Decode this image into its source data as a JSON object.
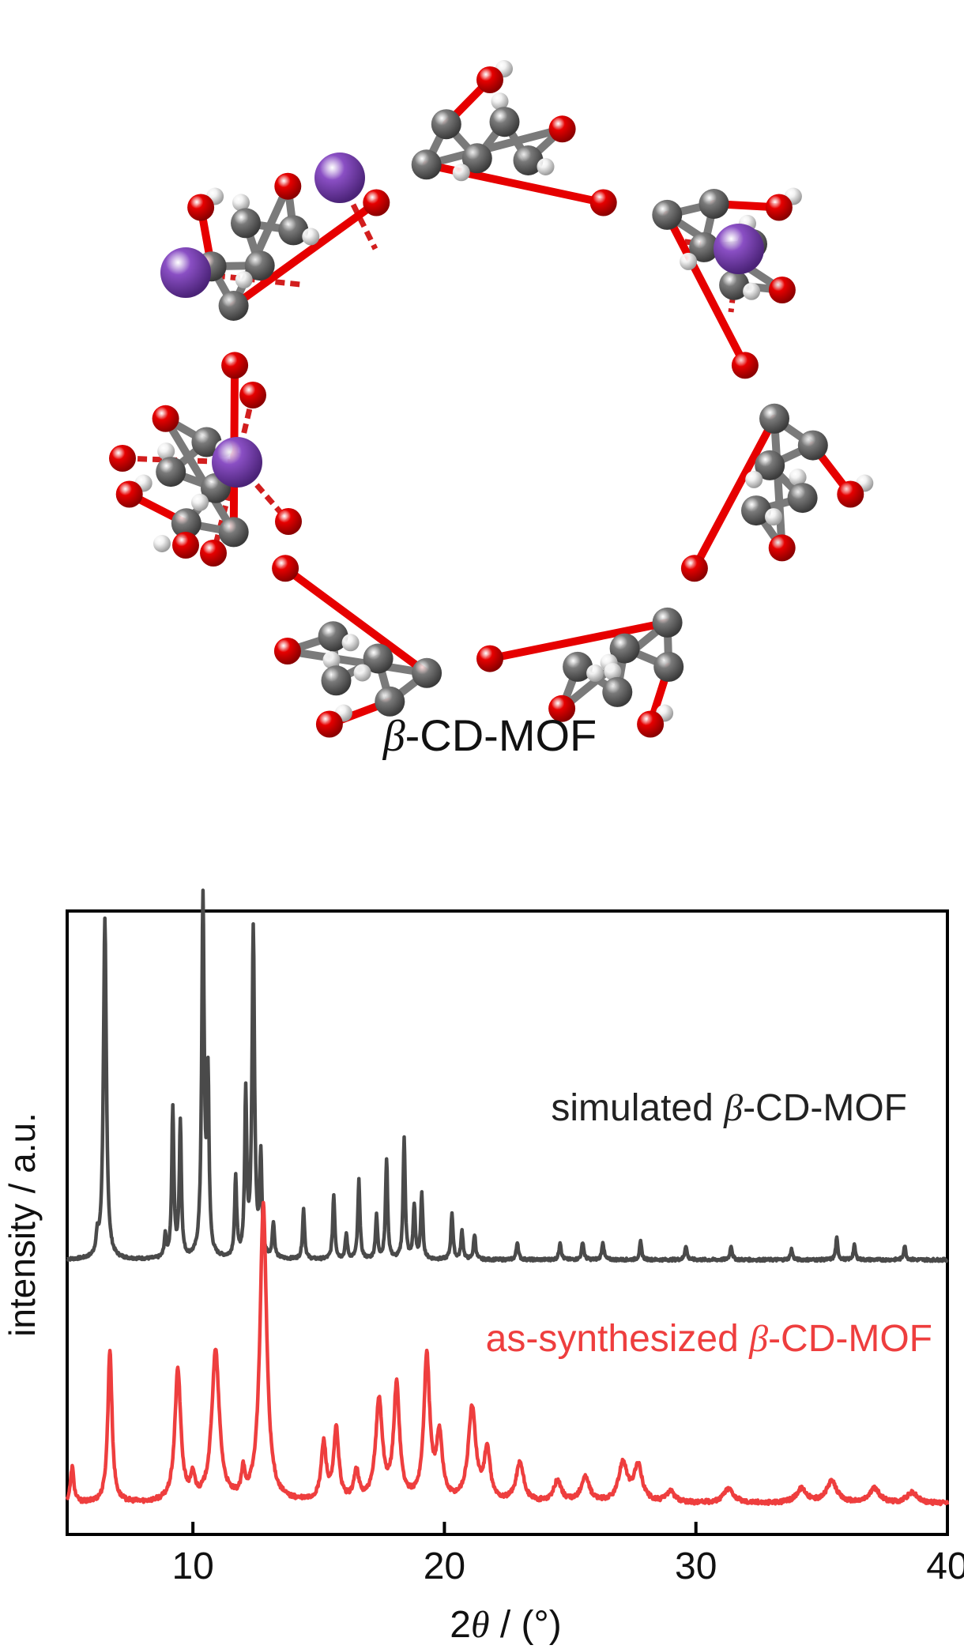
{
  "structure": {
    "label_prefix": "β",
    "label_rest": "-CD-MOF",
    "colors": {
      "oxygen": "#e60000",
      "carbon": "#7a7a7a",
      "hydrogen": "#f2f2f2",
      "potassium": "#8a4fc4"
    }
  },
  "chart_data": {
    "type": "line",
    "xlabel_prefix": "2",
    "xlabel_symbol": "θ",
    "xlabel_suffix": " / (°)",
    "ylabel": "intensity / a.u.",
    "xlim": [
      5,
      40
    ],
    "xticks": [
      10,
      20,
      30,
      40
    ],
    "grid": false,
    "series": [
      {
        "name": "simulated β-CD-MOF",
        "label_before": "simulated ",
        "label_symbol": "β",
        "label_after": "-CD-MOF",
        "color": "#4a4a4a",
        "baseline": 0.38,
        "noise": 0.004,
        "peaks": [
          [
            6.2,
            0.05,
            0.06
          ],
          [
            6.5,
            0.95,
            0.07
          ],
          [
            8.9,
            0.06,
            0.05
          ],
          [
            9.2,
            0.42,
            0.05
          ],
          [
            9.5,
            0.38,
            0.05
          ],
          [
            10.4,
            1.0,
            0.06
          ],
          [
            10.6,
            0.48,
            0.05
          ],
          [
            11.7,
            0.22,
            0.05
          ],
          [
            12.1,
            0.45,
            0.05
          ],
          [
            12.4,
            0.92,
            0.06
          ],
          [
            12.7,
            0.28,
            0.05
          ],
          [
            13.2,
            0.1,
            0.05
          ],
          [
            14.4,
            0.14,
            0.05
          ],
          [
            15.6,
            0.18,
            0.05
          ],
          [
            16.1,
            0.07,
            0.05
          ],
          [
            16.6,
            0.22,
            0.05
          ],
          [
            17.3,
            0.12,
            0.05
          ],
          [
            17.7,
            0.28,
            0.05
          ],
          [
            18.4,
            0.34,
            0.05
          ],
          [
            18.8,
            0.15,
            0.05
          ],
          [
            19.1,
            0.18,
            0.05
          ],
          [
            20.3,
            0.13,
            0.05
          ],
          [
            20.7,
            0.08,
            0.05
          ],
          [
            21.2,
            0.07,
            0.05
          ],
          [
            22.9,
            0.05,
            0.05
          ],
          [
            24.6,
            0.05,
            0.05
          ],
          [
            25.5,
            0.05,
            0.05
          ],
          [
            26.3,
            0.05,
            0.05
          ],
          [
            27.8,
            0.05,
            0.05
          ],
          [
            29.6,
            0.04,
            0.05
          ],
          [
            31.4,
            0.04,
            0.05
          ],
          [
            33.8,
            0.03,
            0.05
          ],
          [
            35.6,
            0.06,
            0.05
          ],
          [
            36.3,
            0.04,
            0.05
          ],
          [
            38.3,
            0.04,
            0.05
          ]
        ]
      },
      {
        "name": "as-synthesized β-CD-MOF",
        "label_before": "as-synthesized ",
        "label_symbol": "β",
        "label_after": "-CD-MOF",
        "color": "#ee3e3e",
        "baseline": 0.02,
        "noise": 0.006,
        "peaks": [
          [
            5.2,
            0.1,
            0.08
          ],
          [
            6.7,
            0.43,
            0.1
          ],
          [
            9.4,
            0.37,
            0.14
          ],
          [
            10.0,
            0.06,
            0.1
          ],
          [
            10.9,
            0.42,
            0.18
          ],
          [
            12.0,
            0.07,
            0.08
          ],
          [
            12.8,
            0.83,
            0.16
          ],
          [
            15.2,
            0.16,
            0.12
          ],
          [
            15.7,
            0.2,
            0.12
          ],
          [
            16.5,
            0.08,
            0.12
          ],
          [
            17.4,
            0.28,
            0.16
          ],
          [
            18.1,
            0.32,
            0.14
          ],
          [
            19.3,
            0.4,
            0.14
          ],
          [
            19.8,
            0.18,
            0.14
          ],
          [
            21.1,
            0.26,
            0.18
          ],
          [
            21.7,
            0.14,
            0.14
          ],
          [
            23.0,
            0.11,
            0.18
          ],
          [
            24.5,
            0.06,
            0.18
          ],
          [
            25.6,
            0.07,
            0.2
          ],
          [
            27.1,
            0.11,
            0.2
          ],
          [
            27.7,
            0.1,
            0.2
          ],
          [
            29.0,
            0.03,
            0.2
          ],
          [
            31.3,
            0.04,
            0.25
          ],
          [
            34.2,
            0.04,
            0.25
          ],
          [
            35.4,
            0.06,
            0.25
          ],
          [
            37.1,
            0.04,
            0.25
          ],
          [
            38.6,
            0.03,
            0.25
          ]
        ]
      }
    ]
  }
}
